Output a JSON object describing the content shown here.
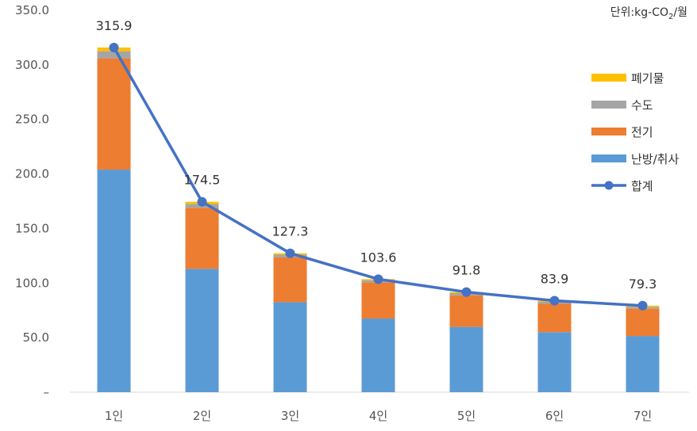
{
  "chart_data": {
    "type": "bar",
    "unit_label": "단위:kg-CO",
    "unit_subscript": "2",
    "unit_suffix": "/월",
    "categories": [
      "1인",
      "2인",
      "3인",
      "4인",
      "5인",
      "6인",
      "7인"
    ],
    "stack_series": [
      {
        "name": "난방/취사",
        "color": "#5b9bd5",
        "values": [
          204.0,
          113.0,
          82.5,
          67.5,
          59.8,
          55.0,
          51.5
        ]
      },
      {
        "name": "전기",
        "color": "#ed7d31",
        "values": [
          102.0,
          56.0,
          41.0,
          33.0,
          29.0,
          26.0,
          25.0
        ]
      },
      {
        "name": "수도",
        "color": "#a5a5a5",
        "values": [
          6.5,
          3.5,
          2.5,
          2.0,
          2.0,
          1.8,
          1.7
        ]
      },
      {
        "name": "폐기물",
        "color": "#ffc000",
        "values": [
          3.4,
          2.0,
          1.3,
          1.1,
          1.0,
          1.1,
          1.1
        ]
      }
    ],
    "line_series": {
      "name": "합계",
      "color": "#4472c4",
      "values": [
        315.9,
        174.5,
        127.3,
        103.6,
        91.8,
        83.9,
        79.3
      ]
    },
    "data_labels": [
      "315.9",
      "174.5",
      "127.3",
      "103.6",
      "91.8",
      "83.9",
      "79.3"
    ],
    "y_ticks": [
      "–",
      "50.0",
      "100.0",
      "150.0",
      "200.0",
      "250.0",
      "300.0",
      "350.0"
    ],
    "ylim": [
      0,
      350
    ],
    "grid": false,
    "legend_position": "right",
    "legend_order": [
      "폐기물",
      "수도",
      "전기",
      "난방/취사",
      "합계"
    ]
  }
}
